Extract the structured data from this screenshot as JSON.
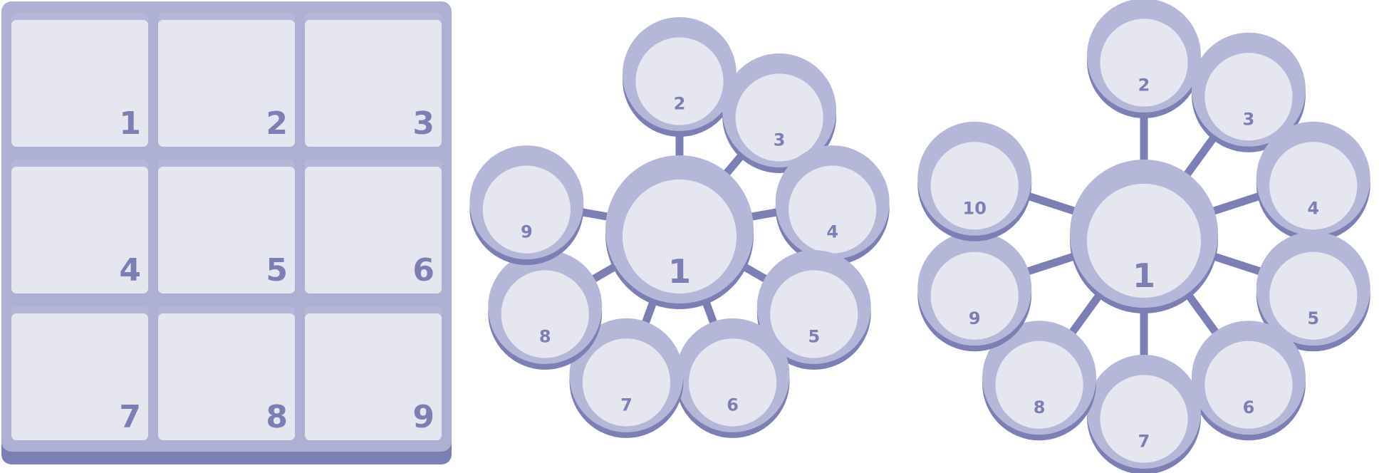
{
  "colors": {
    "dark": "#7c7fb3",
    "mid": "#b5b7d8",
    "light": "#e6e6f1",
    "frame": "#adb0d3"
  },
  "grid_panel": {
    "cells": [
      "1",
      "2",
      "3",
      "4",
      "5",
      "6",
      "7",
      "8",
      "9"
    ]
  },
  "wheel_nine": {
    "hub": "1",
    "spokes": [
      "2",
      "3",
      "4",
      "5",
      "6",
      "7",
      "8",
      "9"
    ]
  },
  "wheel_ten": {
    "hub": "1",
    "spokes": [
      "2",
      "3",
      "4",
      "5",
      "6",
      "7",
      "8",
      "9",
      "10"
    ]
  }
}
